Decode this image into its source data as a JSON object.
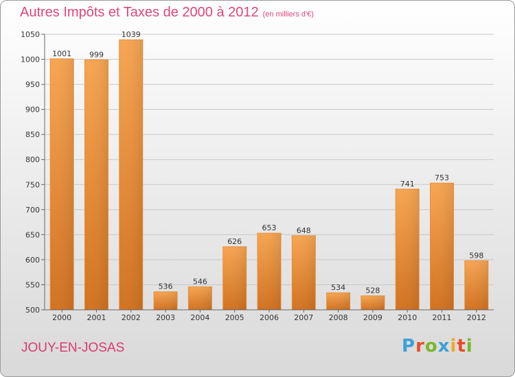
{
  "header": {
    "title": "Autres Impôts et Taxes de 2000 à 2012",
    "subtitle": "(en milliers d'€)"
  },
  "footer": {
    "commune": "JOUY-EN-JOSAS",
    "logo": "Proxiti"
  },
  "colors": {
    "bar_light": "#f7a552",
    "bar_dark": "#d4741f",
    "title": "#e0457b",
    "grid": "#c8c8c8"
  },
  "chart_data": {
    "type": "bar",
    "title": "Autres Impôts et Taxes de 2000 à 2012",
    "subtitle": "(en milliers d'€)",
    "categories": [
      "2000",
      "2001",
      "2002",
      "2003",
      "2004",
      "2005",
      "2006",
      "2007",
      "2008",
      "2009",
      "2010",
      "2011",
      "2012"
    ],
    "values": [
      1001,
      999,
      1039,
      536,
      546,
      626,
      653,
      648,
      534,
      528,
      741,
      753,
      598
    ],
    "ylim": [
      500,
      1050
    ],
    "yticks": [
      500,
      550,
      600,
      650,
      700,
      750,
      800,
      850,
      900,
      950,
      1000,
      1050
    ],
    "grid": true,
    "xlabel": "",
    "ylabel": ""
  }
}
